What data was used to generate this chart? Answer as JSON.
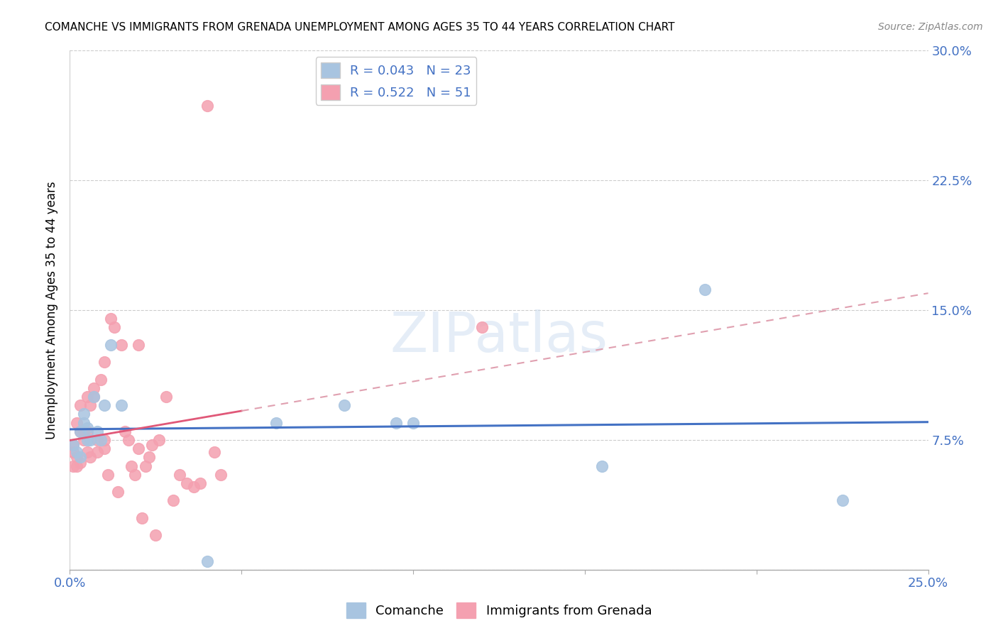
{
  "title": "COMANCHE VS IMMIGRANTS FROM GRENADA UNEMPLOYMENT AMONG AGES 35 TO 44 YEARS CORRELATION CHART",
  "source": "Source: ZipAtlas.com",
  "ylabel": "Unemployment Among Ages 35 to 44 years",
  "watermark": "ZIPatlas",
  "xlim": [
    0,
    0.25
  ],
  "ylim": [
    0,
    0.3
  ],
  "xticks": [
    0.0,
    0.05,
    0.1,
    0.15,
    0.2,
    0.25
  ],
  "xticklabels": [
    "0.0%",
    "",
    "",
    "",
    "",
    "25.0%"
  ],
  "yticks": [
    0.0,
    0.075,
    0.15,
    0.225,
    0.3
  ],
  "yticklabels": [
    "",
    "7.5%",
    "15.0%",
    "22.5%",
    "30.0%"
  ],
  "comanche_R": 0.043,
  "comanche_N": 23,
  "grenada_R": 0.522,
  "grenada_N": 51,
  "comanche_color": "#a8c4e0",
  "grenada_color": "#f4a0b0",
  "comanche_line_color": "#4472c4",
  "grenada_line_color": "#e05878",
  "grenada_line_dash_color": "#e0a0b0",
  "legend_label_comanche": "Comanche",
  "legend_label_grenada": "Immigrants from Grenada",
  "comanche_x": [
    0.001,
    0.002,
    0.003,
    0.003,
    0.004,
    0.004,
    0.005,
    0.005,
    0.006,
    0.007,
    0.008,
    0.009,
    0.01,
    0.012,
    0.015,
    0.04,
    0.06,
    0.08,
    0.095,
    0.1,
    0.155,
    0.185,
    0.225
  ],
  "comanche_y": [
    0.072,
    0.068,
    0.065,
    0.08,
    0.085,
    0.09,
    0.075,
    0.082,
    0.075,
    0.1,
    0.08,
    0.075,
    0.095,
    0.13,
    0.095,
    0.005,
    0.085,
    0.095,
    0.085,
    0.085,
    0.06,
    0.162,
    0.04
  ],
  "grenada_x": [
    0.001,
    0.001,
    0.001,
    0.002,
    0.002,
    0.002,
    0.003,
    0.003,
    0.003,
    0.004,
    0.004,
    0.005,
    0.005,
    0.005,
    0.006,
    0.006,
    0.007,
    0.007,
    0.008,
    0.008,
    0.009,
    0.01,
    0.01,
    0.01,
    0.011,
    0.012,
    0.013,
    0.014,
    0.015,
    0.016,
    0.017,
    0.018,
    0.019,
    0.02,
    0.02,
    0.021,
    0.022,
    0.023,
    0.024,
    0.025,
    0.026,
    0.028,
    0.03,
    0.032,
    0.034,
    0.036,
    0.038,
    0.04,
    0.042,
    0.044,
    0.12
  ],
  "grenada_y": [
    0.068,
    0.06,
    0.072,
    0.06,
    0.065,
    0.085,
    0.062,
    0.095,
    0.08,
    0.075,
    0.08,
    0.08,
    0.1,
    0.068,
    0.065,
    0.095,
    0.1,
    0.105,
    0.068,
    0.075,
    0.11,
    0.07,
    0.12,
    0.075,
    0.055,
    0.145,
    0.14,
    0.045,
    0.13,
    0.08,
    0.075,
    0.06,
    0.055,
    0.07,
    0.13,
    0.03,
    0.06,
    0.065,
    0.072,
    0.02,
    0.075,
    0.1,
    0.04,
    0.055,
    0.05,
    0.048,
    0.05,
    0.268,
    0.068,
    0.055,
    0.14
  ]
}
